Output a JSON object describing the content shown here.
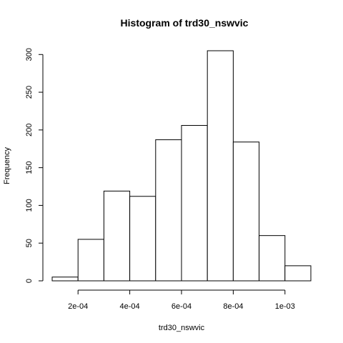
{
  "chart_data": {
    "type": "bar",
    "title": "Histogram of trd30_nswvic",
    "xlabel": "trd30_nswvic",
    "ylabel": "Frequency",
    "bin_edges": [
      0.0001,
      0.0002,
      0.0003,
      0.0004,
      0.0005,
      0.0006,
      0.0007,
      0.0008,
      0.0009,
      0.001,
      0.0011
    ],
    "values": [
      5,
      55,
      119,
      112,
      187,
      206,
      305,
      184,
      60,
      20
    ],
    "xlim": [
      0.0001,
      0.0011
    ],
    "ylim": [
      0,
      305
    ],
    "x_ticks": [
      0.0002,
      0.0004,
      0.0006,
      0.0008,
      0.001
    ],
    "x_tick_labels": [
      "2e-04",
      "4e-04",
      "6e-04",
      "8e-04",
      "1e-03"
    ],
    "y_ticks": [
      0,
      50,
      100,
      150,
      200,
      250,
      300
    ],
    "y_tick_labels": [
      "0",
      "50",
      "100",
      "150",
      "200",
      "250",
      "300"
    ],
    "grid": false,
    "bar_fill": "#ffffff",
    "bar_stroke": "#000000"
  }
}
